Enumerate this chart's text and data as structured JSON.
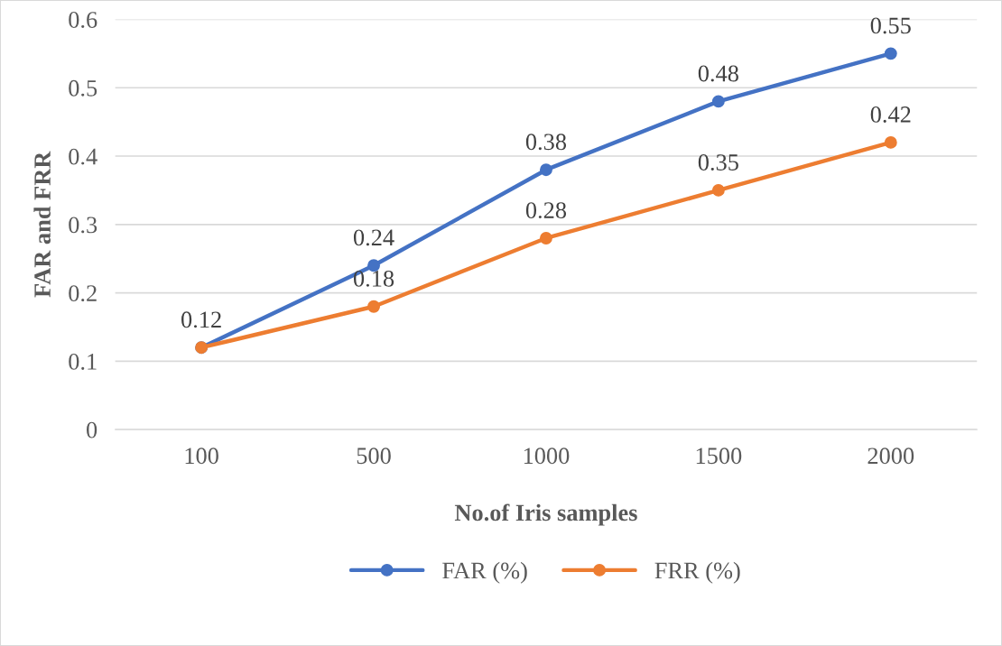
{
  "chart_data": {
    "type": "line",
    "xlabel": "No.of Iris samples",
    "ylabel": "FAR and FRR",
    "categories": [
      "100",
      "500",
      "1000",
      "1500",
      "2000"
    ],
    "series": [
      {
        "name": "FAR (%)",
        "color": "#4472c4",
        "values": [
          0.12,
          0.24,
          0.38,
          0.48,
          0.55
        ],
        "value_labels": [
          "0.12",
          "0.24",
          "0.38",
          "0.48",
          "0.55"
        ]
      },
      {
        "name": "FRR (%)",
        "color": "#ed7d31",
        "values": [
          0.12,
          0.18,
          0.28,
          0.35,
          0.42
        ],
        "value_labels": [
          null,
          "0.18",
          "0.28",
          "0.35",
          "0.42"
        ]
      }
    ],
    "ylim": [
      0,
      0.6
    ],
    "yticks": [
      0,
      0.1,
      0.2,
      0.3,
      0.4,
      0.5,
      0.6
    ],
    "grid": "y",
    "legend": "bottom",
    "marker": "circle",
    "line_style": "solid"
  }
}
